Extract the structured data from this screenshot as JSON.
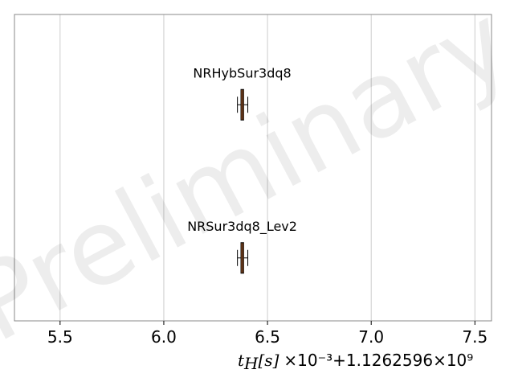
{
  "chart_data": {
    "type": "boxplot",
    "orientation": "horizontal",
    "xlim": [
      5.28,
      7.58
    ],
    "xticks": [
      5.5,
      6.0,
      6.5,
      7.0,
      7.5
    ],
    "xtick_labels": [
      "5.5",
      "6.0",
      "6.5",
      "7.0",
      "7.5"
    ],
    "grid": {
      "x": true,
      "y": false
    },
    "xlabel_symbol": "t",
    "xlabel_subscript": "H",
    "xlabel_unit": "[s]",
    "offset_text": "×10⁻³+1.1262596×10⁹",
    "watermark": "Preliminary",
    "series": [
      {
        "name": "NRHybSur3dq8",
        "median": 6.378,
        "q1": 6.372,
        "q3": 6.385,
        "whisker_low": 6.355,
        "whisker_high": 6.405
      },
      {
        "name": "NRSur3dq8_Lev2",
        "median": 6.378,
        "q1": 6.372,
        "q3": 6.385,
        "whisker_low": 6.355,
        "whisker_high": 6.405
      }
    ],
    "colors": {
      "box_fill": "#e07b39",
      "box_edge": "#000000",
      "grid": "#cccccc",
      "axes": "#888888"
    }
  }
}
